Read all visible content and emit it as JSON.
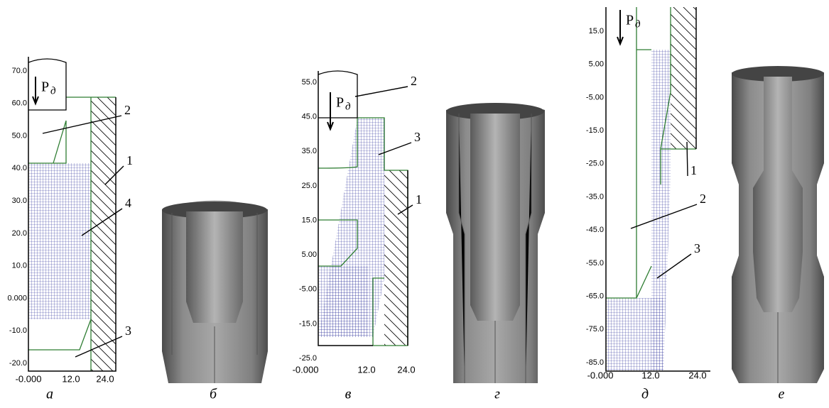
{
  "panels": [
    {
      "caption": "а",
      "y_ticks": [
        "70.0",
        "60.0",
        "50.0",
        "40.0",
        "30.0",
        "20.0",
        "10.0",
        "0.000",
        "-10.0",
        "-20.0"
      ],
      "x_ticks": [
        "-0.000",
        "12.0",
        "24.0"
      ],
      "force": {
        "symbol": "P",
        "subscript": "д"
      },
      "callouts": [
        "2",
        "1",
        "4",
        "3"
      ]
    },
    {
      "caption": "б"
    },
    {
      "caption": "в",
      "y_ticks": [
        "55.0",
        "45.0",
        "35.0",
        "25.0",
        "15.0",
        "5.00",
        "-5.00",
        "-15.0",
        "-25.0"
      ],
      "x_ticks": [
        "-0.000",
        "12.0",
        "24.0"
      ],
      "force": {
        "symbol": "P",
        "subscript": "д"
      },
      "callouts": [
        "2",
        "3",
        "1"
      ]
    },
    {
      "caption": "г"
    },
    {
      "caption": "д",
      "y_ticks": [
        "15.0",
        "5.00",
        "-5.00",
        "-15.0",
        "-25.0",
        "-35.0",
        "-45.0",
        "-55.0",
        "-65.0",
        "-75.0",
        "-85.0"
      ],
      "x_ticks": [
        "-0.000",
        "12.0",
        "24.0"
      ],
      "force": {
        "symbol": "P",
        "subscript": "д"
      },
      "callouts": [
        "1",
        "2",
        "3"
      ]
    },
    {
      "caption": "е"
    }
  ]
}
